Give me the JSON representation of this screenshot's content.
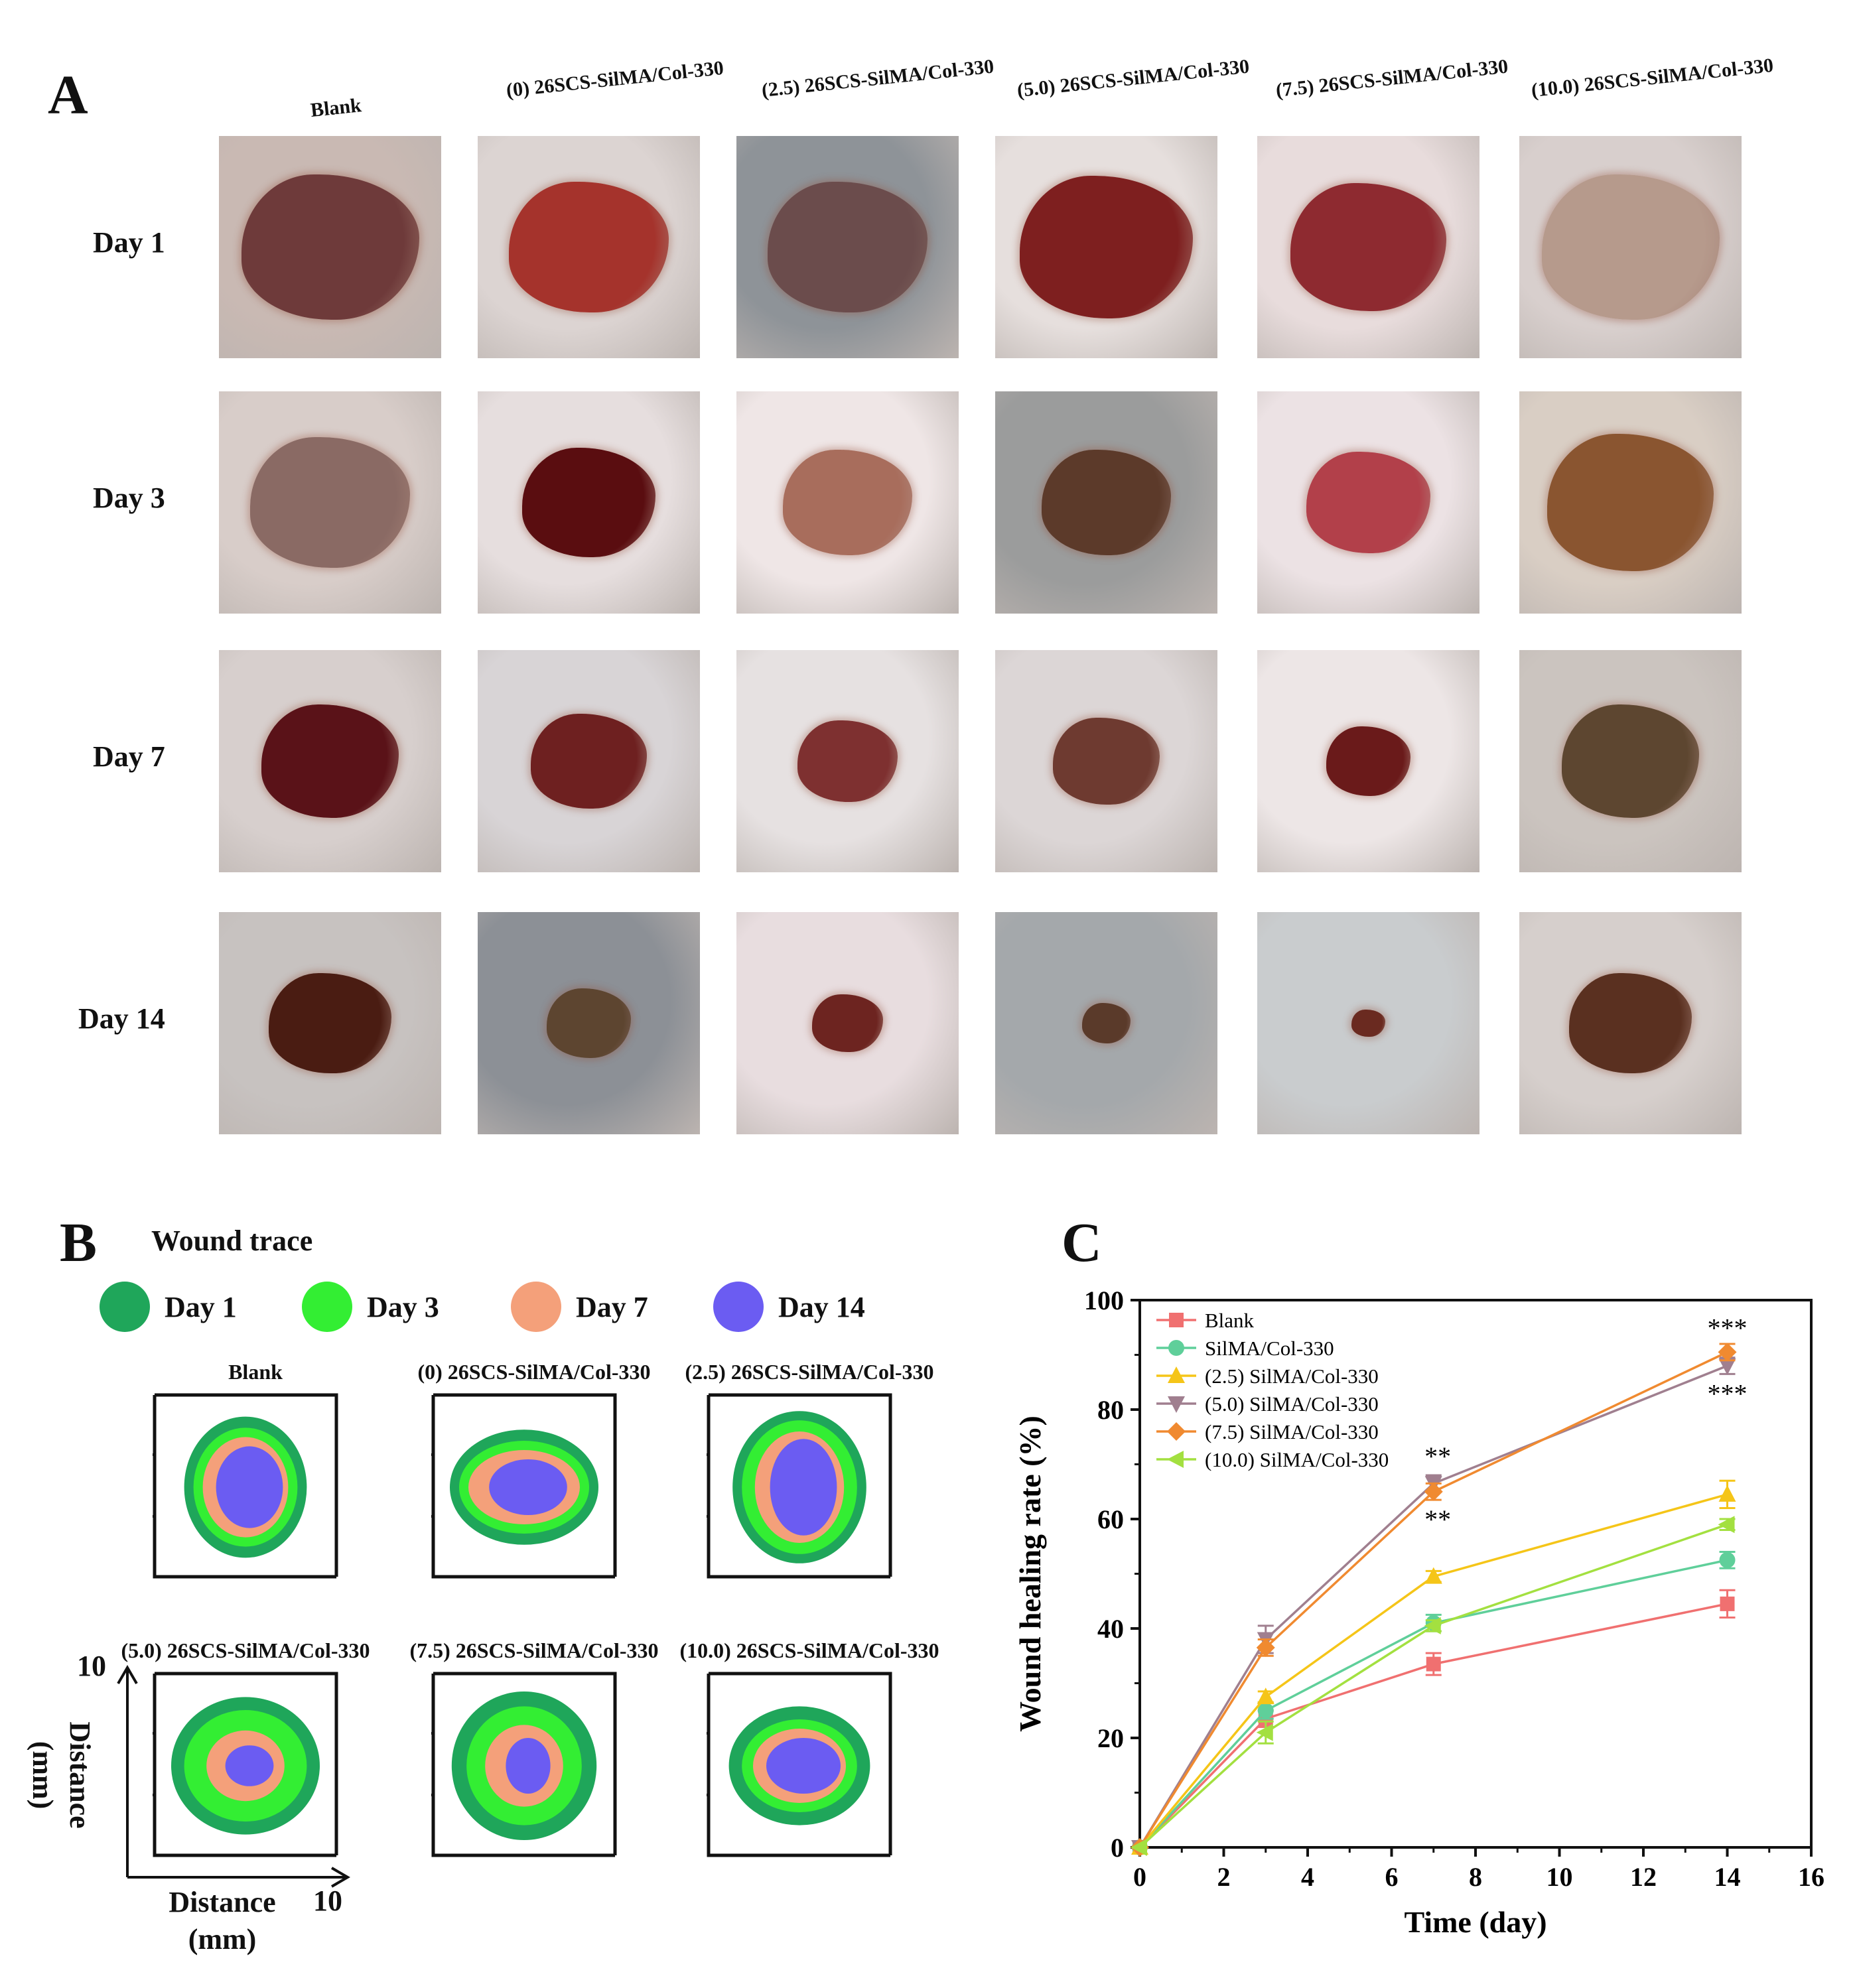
{
  "panel_a": {
    "letter": "A",
    "columns": [
      "Blank",
      "(0) 26SCS-SilMA/Col-330",
      "(2.5) 26SCS-SilMA/Col-330",
      "(5.0) 26SCS-SilMA/Col-330",
      "(7.5) 26SCS-SilMA/Col-330",
      "(10.0) 26SCS-SilMA/Col-330"
    ],
    "rows": [
      "Day 1",
      "Day 3",
      "Day 7",
      "Day 14"
    ]
  },
  "panel_b": {
    "letter": "B",
    "title": "Wound trace",
    "legend": [
      {
        "label": "Day 1",
        "color": "#1fa65a"
      },
      {
        "label": "Day 3",
        "color": "#33ee33"
      },
      {
        "label": "Day 7",
        "color": "#f4a07a"
      },
      {
        "label": "Day 14",
        "color": "#6b5cf2"
      }
    ],
    "traces": [
      "Blank",
      "(0) 26SCS-SilMA/Col-330",
      "(2.5) 26SCS-SilMA/Col-330",
      "(5.0) 26SCS-SilMA/Col-330",
      "(7.5) 26SCS-SilMA/Col-330",
      "(10.0) 26SCS-SilMA/Col-330"
    ],
    "axis_max": "10",
    "axis_label_line1": "Distance",
    "axis_label_line2": "(mm)"
  },
  "chart_data": {
    "type": "line",
    "panel_letter": "C",
    "xlabel": "Time (day)",
    "ylabel": "Wound healing rate (%)",
    "xlim": [
      0,
      16
    ],
    "ylim": [
      0,
      100
    ],
    "xticks": [
      0,
      2,
      4,
      6,
      8,
      10,
      12,
      14,
      16
    ],
    "yticks": [
      0,
      20,
      40,
      60,
      80,
      100
    ],
    "x": [
      0,
      3,
      7,
      14
    ],
    "series": [
      {
        "name": "Blank",
        "color": "#f07070",
        "marker": "square",
        "values": [
          0,
          23.5,
          33.5,
          44.5
        ],
        "errors": [
          0,
          1.5,
          2.0,
          2.5
        ]
      },
      {
        "name": "SilMA/Col-330",
        "color": "#5fcf9a",
        "marker": "circle",
        "values": [
          0,
          25,
          41,
          52.5
        ],
        "errors": [
          0,
          1.5,
          1.5,
          1.5
        ]
      },
      {
        "name": "(2.5) SilMA/Col-330",
        "color": "#f5c518",
        "marker": "triangle-up",
        "values": [
          0,
          27.5,
          49.5,
          64.5
        ],
        "errors": [
          0,
          1.0,
          1.0,
          2.5
        ]
      },
      {
        "name": "(5.0) SilMA/Col-330",
        "color": "#a07f8f",
        "marker": "triangle-down",
        "values": [
          0,
          38,
          66.5,
          88
        ],
        "errors": [
          0,
          2.5,
          1.5,
          1.5
        ]
      },
      {
        "name": "(7.5) SilMA/Col-330",
        "color": "#f08a30",
        "marker": "diamond",
        "values": [
          0,
          36.5,
          65,
          90.5
        ],
        "errors": [
          0,
          1.5,
          1.5,
          1.5
        ]
      },
      {
        "name": "(10.0) SilMA/Col-330",
        "color": "#a3e040",
        "marker": "triangle-left",
        "values": [
          0,
          21,
          40.5,
          59
        ],
        "errors": [
          0,
          2.0,
          1.0,
          1.0
        ]
      }
    ],
    "annotations": [
      {
        "text": "***",
        "x": 14,
        "y": 95
      },
      {
        "text": "***",
        "x": 14,
        "y": 83
      },
      {
        "text": "**",
        "x": 7.1,
        "y": 71.5
      },
      {
        "text": "**",
        "x": 7.1,
        "y": 60
      }
    ]
  }
}
